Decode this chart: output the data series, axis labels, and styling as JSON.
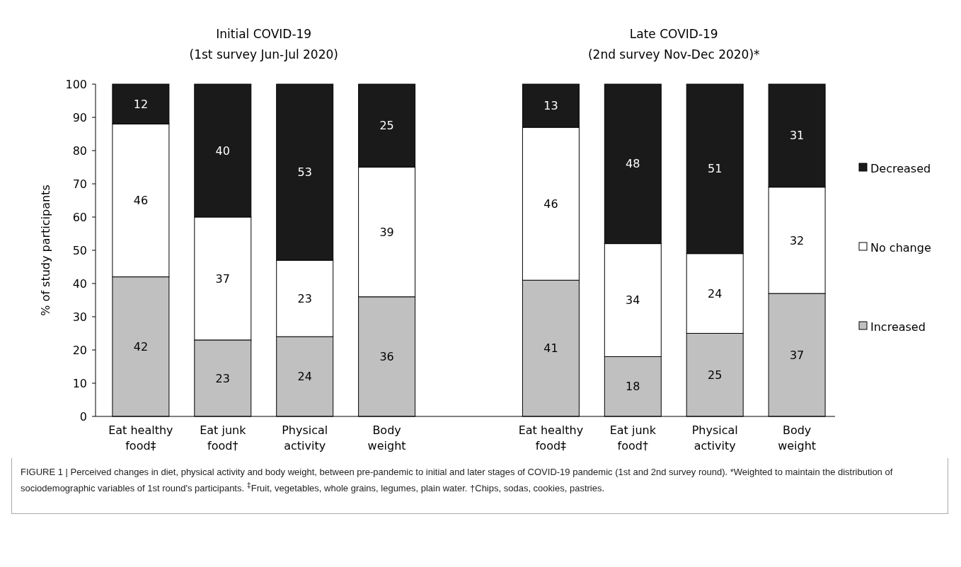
{
  "chart_data": {
    "type": "bar",
    "stacked": true,
    "categories": [
      "Eat healthy food‡",
      "Eat junk food†",
      "Physical activity",
      "Body weight",
      null,
      "Eat healthy food‡",
      "Eat junk food†",
      "Physical activity",
      "Body weight"
    ],
    "series": [
      {
        "name": "Increased",
        "color": "#c0c0c0",
        "values": [
          42,
          23,
          24,
          36,
          null,
          41,
          18,
          25,
          37
        ]
      },
      {
        "name": "No change",
        "color": "#ffffff",
        "values": [
          46,
          37,
          23,
          39,
          null,
          46,
          34,
          24,
          32
        ]
      },
      {
        "name": "Decreased",
        "color": "#1a1a1a",
        "values": [
          12,
          40,
          53,
          25,
          null,
          13,
          48,
          51,
          31
        ]
      }
    ],
    "ylabel": "% of study participants",
    "ylim": [
      0,
      100
    ],
    "yticks": [
      0,
      10,
      20,
      30,
      40,
      50,
      60,
      70,
      80,
      90,
      100
    ],
    "data_labels": true,
    "legend": "right",
    "annotations": [
      "Initial COVID-19\n(1st survey Jun-Jul 2020)",
      "Late COVID-19\n(2nd survey Nov-Dec 2020)*",
      "FIGURE 1 | Perceived changes in diet, physical activity and body weight, between pre-pandemic to initial and later stages of COVID-19 pandemic (1st and 2nd survey round). *Weighted to maintain the distribution of sociodemographic variables of 1st round's participants. $^{‡}$Fruit, vegetables, whole grains, legumes, plain water. †Chips, sodas, cookies, pastries."
    ]
  }
}
